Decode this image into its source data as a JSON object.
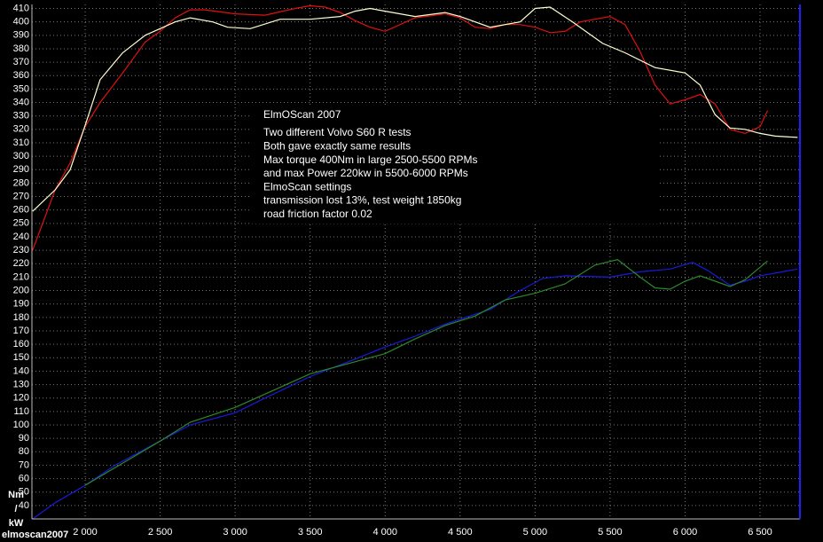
{
  "chart_data": {
    "type": "line",
    "footer": "elmoscan2007",
    "y_label_lines": [
      "Nm",
      "/",
      "kW"
    ],
    "annotation_title": "ElmOScan 2007",
    "annotation_lines": [
      "Two different Volvo S60 R tests",
      "Both gave exactly same results",
      "Max torque 400Nm in large 2500-5500 RPMs",
      "and max Power 220kw in 5500-6000 RPMs",
      "ElmoScan settings",
      "transmission lost 13%, test weight 1850kg",
      "road friction factor 0.02"
    ],
    "xlim": [
      1645,
      6766
    ],
    "ylim": [
      30,
      413
    ],
    "xticks": [
      {
        "value": 2000,
        "label": "2 000"
      },
      {
        "value": 2500,
        "label": "2 500"
      },
      {
        "value": 3000,
        "label": "3 000"
      },
      {
        "value": 3500,
        "label": "3 500"
      },
      {
        "value": 4000,
        "label": "4 000"
      },
      {
        "value": 4500,
        "label": "4 500"
      },
      {
        "value": 5000,
        "label": "5 000"
      },
      {
        "value": 5500,
        "label": "5 500"
      },
      {
        "value": 6000,
        "label": "6 000"
      },
      {
        "value": 6500,
        "label": "6 500"
      }
    ],
    "yticks": [
      40,
      50,
      60,
      70,
      80,
      90,
      100,
      110,
      120,
      130,
      140,
      150,
      160,
      170,
      180,
      190,
      200,
      210,
      220,
      230,
      240,
      250,
      260,
      270,
      280,
      290,
      300,
      310,
      320,
      330,
      340,
      350,
      360,
      370,
      380,
      390,
      400,
      410
    ],
    "grid": true,
    "series": [
      {
        "color": "#e01010",
        "x": [
          1650,
          1800,
          1900,
          2000,
          2100,
          2250,
          2400,
          2500,
          2600,
          2700,
          2800,
          3000,
          3200,
          3400,
          3500,
          3600,
          3700,
          3800,
          3900,
          4000,
          4200,
          4400,
          4500,
          4600,
          4700,
          4800,
          4900,
          5000,
          5100,
          5200,
          5300,
          5500,
          5600,
          5700,
          5800,
          5900,
          6000,
          6100,
          6200,
          6300,
          6400,
          6500,
          6550
        ],
        "values": [
          230,
          275,
          295,
          322,
          340,
          362,
          385,
          393,
          403,
          409,
          409,
          406,
          405,
          410,
          412,
          411,
          407,
          401,
          396,
          393,
          403,
          406,
          403,
          396,
          395,
          398,
          398,
          396,
          392,
          393,
          400,
          404,
          398,
          378,
          353,
          339,
          342,
          346,
          339,
          320,
          317,
          322,
          334
        ]
      },
      {
        "color": "#ffffd0",
        "x": [
          1650,
          1800,
          1900,
          2000,
          2100,
          2250,
          2400,
          2600,
          2700,
          2850,
          2950,
          3100,
          3300,
          3500,
          3700,
          3800,
          3900,
          4000,
          4200,
          4400,
          4500,
          4700,
          4900,
          5000,
          5100,
          5250,
          5450,
          5600,
          5800,
          6000,
          6100,
          6200,
          6300,
          6400,
          6500,
          6600,
          6750
        ],
        "values": [
          259,
          275,
          290,
          323,
          357,
          377,
          390,
          400,
          403,
          400,
          396,
          395,
          402,
          402,
          404,
          408,
          410,
          408,
          404,
          407,
          404,
          396,
          400,
          410,
          411,
          400,
          384,
          377,
          366,
          362,
          353,
          331,
          321,
          320,
          317,
          315,
          314
        ]
      },
      {
        "color": "#1a1adc",
        "x": [
          1650,
          1800,
          2000,
          2200,
          2500,
          2700,
          3000,
          3200,
          3500,
          3800,
          4000,
          4200,
          4400,
          4700,
          4900,
          5050,
          5200,
          5500,
          5700,
          5900,
          6050,
          6150,
          6300,
          6400,
          6500,
          6750
        ],
        "values": [
          30,
          42,
          55,
          70,
          88,
          100,
          109,
          120,
          136,
          149,
          158,
          166,
          175,
          186,
          200,
          209,
          211,
          210,
          214,
          216,
          221,
          215,
          204,
          207,
          211,
          216
        ]
      },
      {
        "color": "#2a8a2a",
        "x": [
          2000,
          2500,
          2700,
          3000,
          3200,
          3500,
          3800,
          4000,
          4200,
          4400,
          4600,
          4800,
          5000,
          5200,
          5400,
          5550,
          5700,
          5800,
          5900,
          6000,
          6100,
          6300,
          6400,
          6550
        ],
        "values": [
          55,
          88,
          102,
          113,
          123,
          138,
          147,
          153,
          164,
          174,
          181,
          193,
          198,
          205,
          219,
          223,
          210,
          202,
          201,
          207,
          211,
          203,
          208,
          222
        ]
      }
    ]
  }
}
